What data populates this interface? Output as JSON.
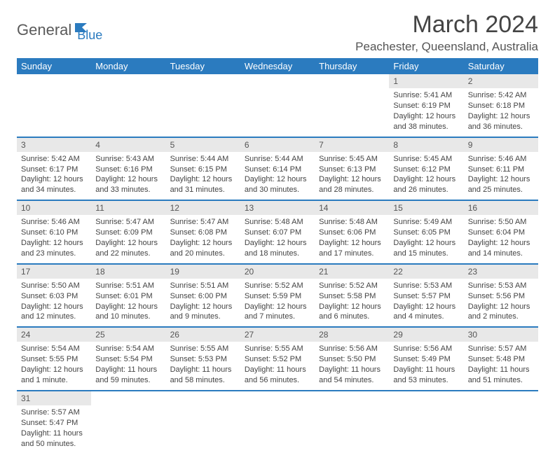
{
  "logo": {
    "part1": "General",
    "part2": "Blue"
  },
  "title": "March 2024",
  "location": "Peachester, Queensland, Australia",
  "colors": {
    "header_bg": "#2b7bbf",
    "header_text": "#ffffff",
    "daynum_bg": "#e8e8e8",
    "border": "#2b7bbf"
  },
  "weekdays": [
    "Sunday",
    "Monday",
    "Tuesday",
    "Wednesday",
    "Thursday",
    "Friday",
    "Saturday"
  ],
  "weeks": [
    [
      null,
      null,
      null,
      null,
      null,
      {
        "n": "1",
        "sr": "Sunrise: 5:41 AM",
        "ss": "Sunset: 6:19 PM",
        "d1": "Daylight: 12 hours",
        "d2": "and 38 minutes."
      },
      {
        "n": "2",
        "sr": "Sunrise: 5:42 AM",
        "ss": "Sunset: 6:18 PM",
        "d1": "Daylight: 12 hours",
        "d2": "and 36 minutes."
      }
    ],
    [
      {
        "n": "3",
        "sr": "Sunrise: 5:42 AM",
        "ss": "Sunset: 6:17 PM",
        "d1": "Daylight: 12 hours",
        "d2": "and 34 minutes."
      },
      {
        "n": "4",
        "sr": "Sunrise: 5:43 AM",
        "ss": "Sunset: 6:16 PM",
        "d1": "Daylight: 12 hours",
        "d2": "and 33 minutes."
      },
      {
        "n": "5",
        "sr": "Sunrise: 5:44 AM",
        "ss": "Sunset: 6:15 PM",
        "d1": "Daylight: 12 hours",
        "d2": "and 31 minutes."
      },
      {
        "n": "6",
        "sr": "Sunrise: 5:44 AM",
        "ss": "Sunset: 6:14 PM",
        "d1": "Daylight: 12 hours",
        "d2": "and 30 minutes."
      },
      {
        "n": "7",
        "sr": "Sunrise: 5:45 AM",
        "ss": "Sunset: 6:13 PM",
        "d1": "Daylight: 12 hours",
        "d2": "and 28 minutes."
      },
      {
        "n": "8",
        "sr": "Sunrise: 5:45 AM",
        "ss": "Sunset: 6:12 PM",
        "d1": "Daylight: 12 hours",
        "d2": "and 26 minutes."
      },
      {
        "n": "9",
        "sr": "Sunrise: 5:46 AM",
        "ss": "Sunset: 6:11 PM",
        "d1": "Daylight: 12 hours",
        "d2": "and 25 minutes."
      }
    ],
    [
      {
        "n": "10",
        "sr": "Sunrise: 5:46 AM",
        "ss": "Sunset: 6:10 PM",
        "d1": "Daylight: 12 hours",
        "d2": "and 23 minutes."
      },
      {
        "n": "11",
        "sr": "Sunrise: 5:47 AM",
        "ss": "Sunset: 6:09 PM",
        "d1": "Daylight: 12 hours",
        "d2": "and 22 minutes."
      },
      {
        "n": "12",
        "sr": "Sunrise: 5:47 AM",
        "ss": "Sunset: 6:08 PM",
        "d1": "Daylight: 12 hours",
        "d2": "and 20 minutes."
      },
      {
        "n": "13",
        "sr": "Sunrise: 5:48 AM",
        "ss": "Sunset: 6:07 PM",
        "d1": "Daylight: 12 hours",
        "d2": "and 18 minutes."
      },
      {
        "n": "14",
        "sr": "Sunrise: 5:48 AM",
        "ss": "Sunset: 6:06 PM",
        "d1": "Daylight: 12 hours",
        "d2": "and 17 minutes."
      },
      {
        "n": "15",
        "sr": "Sunrise: 5:49 AM",
        "ss": "Sunset: 6:05 PM",
        "d1": "Daylight: 12 hours",
        "d2": "and 15 minutes."
      },
      {
        "n": "16",
        "sr": "Sunrise: 5:50 AM",
        "ss": "Sunset: 6:04 PM",
        "d1": "Daylight: 12 hours",
        "d2": "and 14 minutes."
      }
    ],
    [
      {
        "n": "17",
        "sr": "Sunrise: 5:50 AM",
        "ss": "Sunset: 6:03 PM",
        "d1": "Daylight: 12 hours",
        "d2": "and 12 minutes."
      },
      {
        "n": "18",
        "sr": "Sunrise: 5:51 AM",
        "ss": "Sunset: 6:01 PM",
        "d1": "Daylight: 12 hours",
        "d2": "and 10 minutes."
      },
      {
        "n": "19",
        "sr": "Sunrise: 5:51 AM",
        "ss": "Sunset: 6:00 PM",
        "d1": "Daylight: 12 hours",
        "d2": "and 9 minutes."
      },
      {
        "n": "20",
        "sr": "Sunrise: 5:52 AM",
        "ss": "Sunset: 5:59 PM",
        "d1": "Daylight: 12 hours",
        "d2": "and 7 minutes."
      },
      {
        "n": "21",
        "sr": "Sunrise: 5:52 AM",
        "ss": "Sunset: 5:58 PM",
        "d1": "Daylight: 12 hours",
        "d2": "and 6 minutes."
      },
      {
        "n": "22",
        "sr": "Sunrise: 5:53 AM",
        "ss": "Sunset: 5:57 PM",
        "d1": "Daylight: 12 hours",
        "d2": "and 4 minutes."
      },
      {
        "n": "23",
        "sr": "Sunrise: 5:53 AM",
        "ss": "Sunset: 5:56 PM",
        "d1": "Daylight: 12 hours",
        "d2": "and 2 minutes."
      }
    ],
    [
      {
        "n": "24",
        "sr": "Sunrise: 5:54 AM",
        "ss": "Sunset: 5:55 PM",
        "d1": "Daylight: 12 hours",
        "d2": "and 1 minute."
      },
      {
        "n": "25",
        "sr": "Sunrise: 5:54 AM",
        "ss": "Sunset: 5:54 PM",
        "d1": "Daylight: 11 hours",
        "d2": "and 59 minutes."
      },
      {
        "n": "26",
        "sr": "Sunrise: 5:55 AM",
        "ss": "Sunset: 5:53 PM",
        "d1": "Daylight: 11 hours",
        "d2": "and 58 minutes."
      },
      {
        "n": "27",
        "sr": "Sunrise: 5:55 AM",
        "ss": "Sunset: 5:52 PM",
        "d1": "Daylight: 11 hours",
        "d2": "and 56 minutes."
      },
      {
        "n": "28",
        "sr": "Sunrise: 5:56 AM",
        "ss": "Sunset: 5:50 PM",
        "d1": "Daylight: 11 hours",
        "d2": "and 54 minutes."
      },
      {
        "n": "29",
        "sr": "Sunrise: 5:56 AM",
        "ss": "Sunset: 5:49 PM",
        "d1": "Daylight: 11 hours",
        "d2": "and 53 minutes."
      },
      {
        "n": "30",
        "sr": "Sunrise: 5:57 AM",
        "ss": "Sunset: 5:48 PM",
        "d1": "Daylight: 11 hours",
        "d2": "and 51 minutes."
      }
    ],
    [
      {
        "n": "31",
        "sr": "Sunrise: 5:57 AM",
        "ss": "Sunset: 5:47 PM",
        "d1": "Daylight: 11 hours",
        "d2": "and 50 minutes."
      },
      null,
      null,
      null,
      null,
      null,
      null
    ]
  ]
}
